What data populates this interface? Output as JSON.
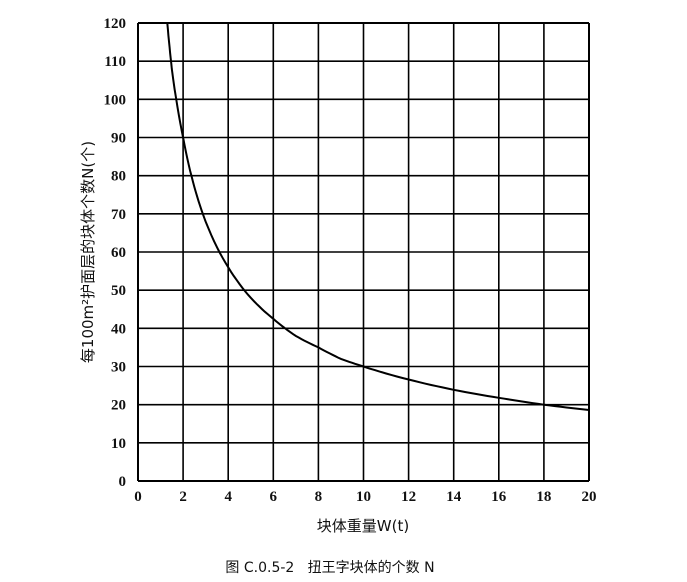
{
  "chart_data": {
    "type": "line",
    "title": "图 C.0.5-2   扭王字块体的个数 N",
    "xlabel": "块体重量W(t)",
    "ylabel": "每100m²护面层的块体个数N(个)",
    "xlim": [
      0,
      20
    ],
    "ylim": [
      0,
      120
    ],
    "xticks": [
      "0",
      "2",
      "4",
      "6",
      "8",
      "10",
      "12",
      "14",
      "16",
      "18",
      "20"
    ],
    "yticks": [
      "0",
      "10",
      "20",
      "30",
      "40",
      "50",
      "60",
      "70",
      "80",
      "90",
      "100",
      "110",
      "120"
    ],
    "grid": true,
    "series": [
      {
        "name": "N",
        "x": [
          1.3,
          1.5,
          2,
          2.5,
          3,
          4,
          5,
          6,
          7,
          8,
          9,
          10,
          12,
          14,
          16,
          18,
          20
        ],
        "y": [
          120,
          108,
          90,
          77,
          68,
          56,
          48,
          42.5,
          38,
          35,
          32,
          30,
          26.6,
          23.9,
          21.8,
          20,
          18.6
        ]
      }
    ]
  }
}
